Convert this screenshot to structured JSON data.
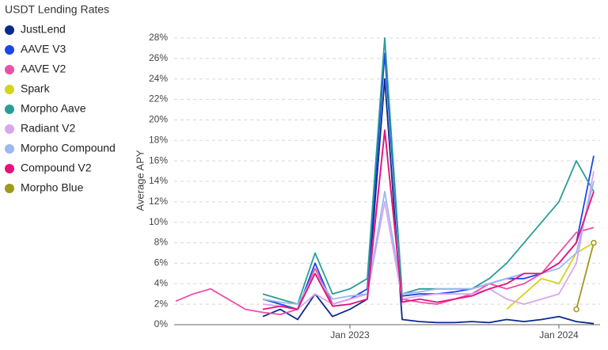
{
  "chart_data": {
    "type": "line",
    "title": "USDT Lending Rates",
    "y_label": "Average APY",
    "x": [
      "2022-03",
      "2022-04",
      "2022-05",
      "2022-06",
      "2022-07",
      "2022-08",
      "2022-09",
      "2022-10",
      "2022-11",
      "2022-12",
      "2023-01",
      "2023-02",
      "2023-03",
      "2023-04",
      "2023-05",
      "2023-06",
      "2023-07",
      "2023-08",
      "2023-09",
      "2023-10",
      "2023-11",
      "2023-12",
      "2024-01",
      "2024-02",
      "2024-03"
    ],
    "xlim": [
      "2022-03",
      "2024-03"
    ],
    "xticks": [
      {
        "value": "2023-01",
        "label": "Jan 2023"
      },
      {
        "value": "2024-01",
        "label": "Jan 2024"
      }
    ],
    "ylim": [
      0,
      28
    ],
    "yticks": [
      {
        "value": 0,
        "label": "0%"
      },
      {
        "value": 2,
        "label": "2%"
      },
      {
        "value": 4,
        "label": "4%"
      },
      {
        "value": 6,
        "label": "6%"
      },
      {
        "value": 8,
        "label": "8%"
      },
      {
        "value": 10,
        "label": "10%"
      },
      {
        "value": 12,
        "label": "12%"
      },
      {
        "value": 14,
        "label": "14%"
      },
      {
        "value": 16,
        "label": "16%"
      },
      {
        "value": 18,
        "label": "18%"
      },
      {
        "value": 20,
        "label": "20%"
      },
      {
        "value": 22,
        "label": "22%"
      },
      {
        "value": 24,
        "label": "24%"
      },
      {
        "value": 26,
        "label": "26%"
      },
      {
        "value": 28,
        "label": "28%"
      }
    ],
    "grid": true,
    "series": [
      {
        "name": "JustLend",
        "color": "#0a2a8c",
        "values": [
          null,
          null,
          null,
          null,
          null,
          0.8,
          1.5,
          0.5,
          3,
          0.8,
          1.5,
          2.5,
          24,
          0.5,
          0.3,
          0.2,
          0.2,
          0.3,
          0.2,
          0.5,
          0.3,
          0.5,
          0.8,
          0.3,
          0.1
        ]
      },
      {
        "name": "AAVE V3",
        "color": "#1a47e6",
        "values": [
          null,
          null,
          null,
          null,
          null,
          2.5,
          2.0,
          1.5,
          6,
          2,
          2.5,
          3.5,
          26.5,
          2.8,
          3,
          3,
          3.2,
          3.5,
          4,
          4.5,
          4.5,
          5,
          6,
          8,
          16.5
        ]
      },
      {
        "name": "AAVE V2",
        "color": "#ee4fa6",
        "values": [
          2.3,
          3,
          3.5,
          2.5,
          1.5,
          1.2,
          1.0,
          1.5,
          5.5,
          2,
          2.5,
          3,
          19,
          2.5,
          2.2,
          2,
          2.5,
          3,
          4,
          3.5,
          4,
          5,
          7,
          9,
          9.5
        ]
      },
      {
        "name": "Spark",
        "color": "#d4d41a",
        "values": [
          null,
          null,
          null,
          null,
          null,
          null,
          null,
          null,
          null,
          null,
          null,
          null,
          null,
          null,
          null,
          null,
          null,
          null,
          null,
          1.5,
          3,
          4.5,
          4,
          7,
          8
        ]
      },
      {
        "name": "Morpho Aave",
        "color": "#2a9d99",
        "values": [
          null,
          null,
          null,
          null,
          null,
          3,
          2.5,
          2,
          7,
          3,
          3.5,
          4.5,
          28,
          3,
          3.5,
          3.5,
          3.5,
          3.5,
          4.5,
          6,
          8,
          10,
          12,
          16,
          13
        ]
      },
      {
        "name": "Radiant V2",
        "color": "#d9a6f0",
        "values": [
          null,
          null,
          null,
          null,
          null,
          2,
          1.8,
          1.5,
          3,
          2,
          2.5,
          3,
          12,
          2.5,
          2.8,
          3,
          3,
          3,
          3.5,
          2.5,
          2,
          2.5,
          3,
          6,
          15
        ]
      },
      {
        "name": "Morpho Compound",
        "color": "#9bb8f0",
        "values": [
          null,
          null,
          null,
          null,
          null,
          2.5,
          2.2,
          2,
          5,
          2.5,
          2.8,
          3,
          13,
          3,
          3.2,
          3.5,
          3.5,
          3.5,
          4,
          4.5,
          5,
          5,
          5.5,
          7,
          14
        ]
      },
      {
        "name": "Compound V2",
        "color": "#e6127a",
        "values": [
          null,
          null,
          null,
          null,
          null,
          1.5,
          1.8,
          1.5,
          5,
          1.8,
          2,
          2.5,
          19,
          2.2,
          2.5,
          2.2,
          2.5,
          2.8,
          3.5,
          4,
          5,
          5,
          6,
          8,
          13
        ]
      },
      {
        "name": "Morpho Blue",
        "color": "#9e9a1a",
        "values": [
          null,
          null,
          null,
          null,
          null,
          null,
          null,
          null,
          null,
          null,
          null,
          null,
          null,
          null,
          null,
          null,
          null,
          null,
          null,
          null,
          null,
          null,
          null,
          1.5,
          8
        ]
      }
    ]
  }
}
